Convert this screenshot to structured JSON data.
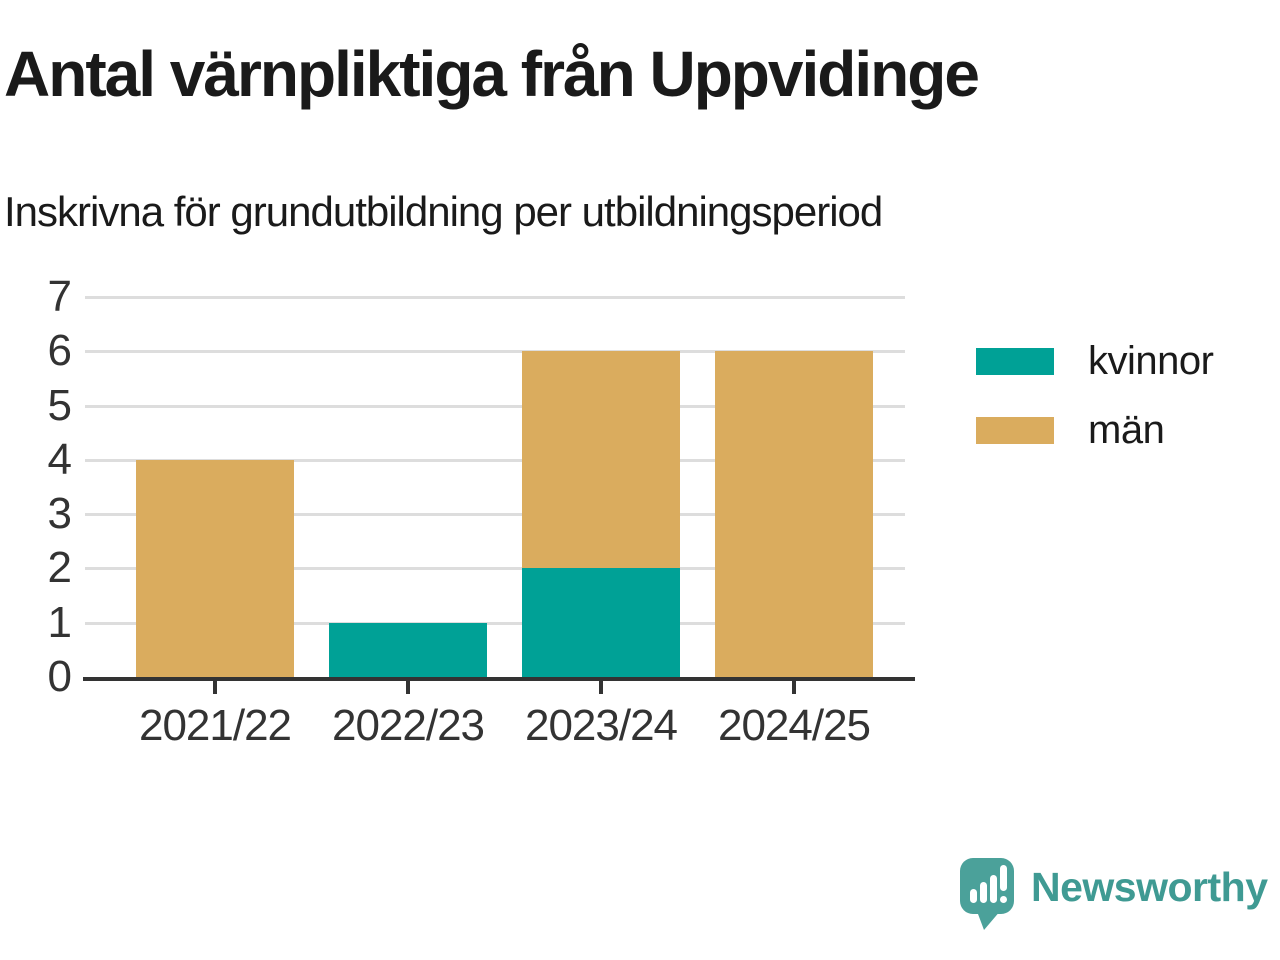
{
  "title": "Antal värnpliktiga från Uppvidinge",
  "subtitle": "Inskrivna för grundutbildning per utbildningsperiod",
  "chart_data": {
    "type": "bar",
    "stacked": true,
    "categories": [
      "2021/22",
      "2022/23",
      "2023/24",
      "2024/25"
    ],
    "series": [
      {
        "name": "kvinnor",
        "color": "#00A196",
        "values": [
          0,
          1,
          2,
          0
        ]
      },
      {
        "name": "män",
        "color": "#DAAC5E",
        "values": [
          4,
          0,
          4,
          6
        ]
      }
    ],
    "title": "Antal värnpliktiga från Uppvidinge",
    "subtitle": "Inskrivna för grundutbildning per utbildningsperiod",
    "xlabel": "",
    "ylabel": "",
    "ylim": [
      0,
      7
    ],
    "yticks": [
      0,
      1,
      2,
      3,
      4,
      5,
      6,
      7
    ],
    "grid": true,
    "legend_position": "right"
  },
  "legend": {
    "items": [
      {
        "label": "kvinnor",
        "color": "#00A196"
      },
      {
        "label": "män",
        "color": "#DAAC5E"
      }
    ]
  },
  "branding": {
    "name": "Newsworthy",
    "icon": "bar-chart-speech-bubble-icon",
    "text_color": "#3F9A93",
    "bubble_color": "#4BA19A"
  },
  "colors": {
    "axis": "#333333",
    "grid": "#DDDDDD",
    "text": "#1A1A1A",
    "background": "#FFFFFF"
  }
}
